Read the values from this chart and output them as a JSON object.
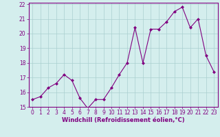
{
  "x": [
    0,
    1,
    2,
    3,
    4,
    5,
    6,
    7,
    8,
    9,
    10,
    11,
    12,
    13,
    14,
    15,
    16,
    17,
    18,
    19,
    20,
    21,
    22,
    23
  ],
  "y": [
    15.5,
    15.7,
    16.3,
    16.6,
    17.2,
    16.8,
    15.6,
    14.9,
    15.5,
    15.5,
    16.3,
    17.2,
    18.0,
    20.4,
    18.0,
    20.3,
    20.3,
    20.8,
    21.5,
    21.8,
    20.4,
    21.0,
    18.5,
    17.4
  ],
  "line_color": "#800080",
  "marker": "D",
  "marker_size": 2,
  "bg_color": "#d4eeed",
  "grid_color": "#aacfcf",
  "xlabel": "Windchill (Refroidissement éolien,°C)",
  "ylabel": "",
  "ylim": [
    15,
    22
  ],
  "xlim": [
    -0.5,
    23.5
  ],
  "yticks": [
    15,
    16,
    17,
    18,
    19,
    20,
    21,
    22
  ],
  "xticks": [
    0,
    1,
    2,
    3,
    4,
    5,
    6,
    7,
    8,
    9,
    10,
    11,
    12,
    13,
    14,
    15,
    16,
    17,
    18,
    19,
    20,
    21,
    22,
    23
  ],
  "title": "",
  "label_fontsize": 6,
  "tick_fontsize": 5.5,
  "label_color": "#800080",
  "tick_color": "#800080",
  "spine_color": "#800080"
}
